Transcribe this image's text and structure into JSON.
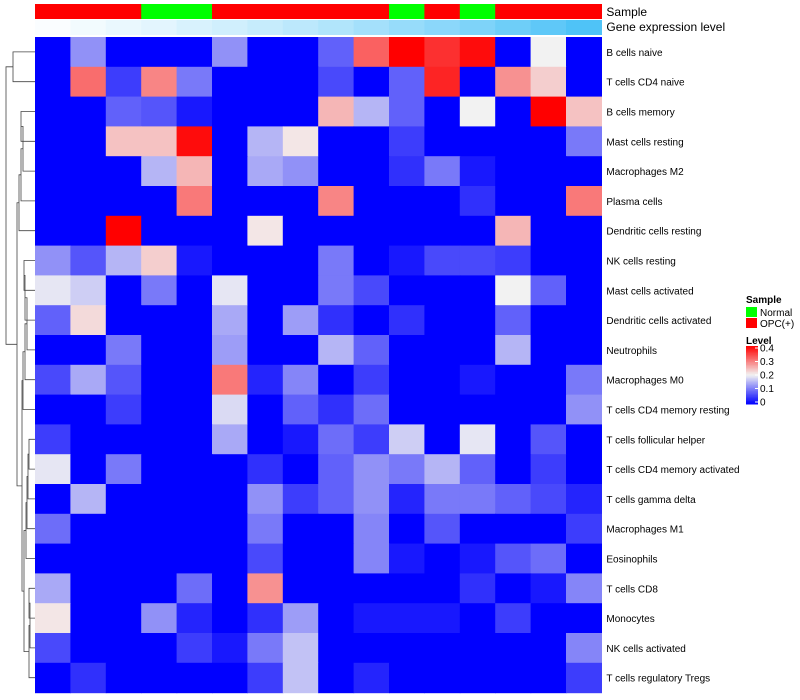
{
  "chart_data": {
    "type": "heatmap",
    "title": "",
    "annotation_labels": [
      "Sample",
      "Gene expression level"
    ],
    "sample_annotation": [
      "OPC(+)",
      "OPC(+)",
      "OPC(+)",
      "Normal",
      "Normal",
      "OPC(+)",
      "OPC(+)",
      "OPC(+)",
      "OPC(+)",
      "OPC(+)",
      "Normal",
      "OPC(+)",
      "Normal",
      "OPC(+)",
      "OPC(+)",
      "OPC(+)"
    ],
    "expression_annotation": [
      0.02,
      0.05,
      0.08,
      0.11,
      0.15,
      0.18,
      0.22,
      0.26,
      0.3,
      0.35,
      0.4,
      0.45,
      0.5,
      0.56,
      0.62,
      0.68
    ],
    "rows": [
      "B cells naive",
      "T cells CD4 naive",
      "B cells memory",
      "Mast cells resting",
      "Macrophages M2",
      "Plasma cells",
      "Dendritic cells resting",
      "NK cells resting",
      "Mast cells activated",
      "Dendritic cells activated",
      "Neutrophils",
      "Macrophages M0",
      "T cells CD4 memory resting",
      "T cells follicular helper",
      "T cells CD4 memory activated",
      "T cells gamma delta",
      "Macrophages M1",
      "Eosinophils",
      "T cells CD8",
      "Monocytes",
      "NK cells activated",
      "T cells regulatory  Tregs"
    ],
    "values": [
      [
        0.0,
        0.12,
        0.0,
        0.0,
        0.0,
        0.12,
        0.0,
        0.0,
        0.08,
        0.32,
        0.4,
        0.36,
        0.39,
        0.0,
        0.2,
        0.0
      ],
      [
        0.0,
        0.31,
        0.05,
        0.29,
        0.1,
        0.0,
        0.0,
        0.0,
        0.06,
        0.0,
        0.08,
        0.37,
        0.0,
        0.28,
        0.23,
        0.0
      ],
      [
        0.0,
        0.0,
        0.08,
        0.07,
        0.02,
        0.0,
        0.0,
        0.0,
        0.25,
        0.15,
        0.08,
        0.0,
        0.2,
        0.0,
        0.4,
        0.24
      ],
      [
        0.0,
        0.0,
        0.24,
        0.24,
        0.39,
        0.0,
        0.15,
        0.21,
        0.0,
        0.0,
        0.05,
        0.0,
        0.0,
        0.0,
        0.0,
        0.1
      ],
      [
        0.0,
        0.0,
        0.0,
        0.15,
        0.25,
        0.0,
        0.14,
        0.12,
        0.0,
        0.0,
        0.04,
        0.1,
        0.02,
        0.0,
        0.0,
        0.0
      ],
      [
        0.0,
        0.0,
        0.0,
        0.0,
        0.3,
        0.0,
        0.0,
        0.0,
        0.29,
        0.0,
        0.0,
        0.0,
        0.04,
        0.0,
        0.0,
        0.3
      ],
      [
        0.0,
        0.0,
        0.4,
        0.0,
        0.0,
        0.0,
        0.21,
        0.0,
        0.0,
        0.0,
        0.0,
        0.0,
        0.0,
        0.25,
        0.0,
        0.0
      ],
      [
        0.12,
        0.07,
        0.15,
        0.23,
        0.02,
        0.0,
        0.0,
        0.0,
        0.1,
        0.0,
        0.02,
        0.06,
        0.06,
        0.05,
        0.0,
        0.0
      ],
      [
        0.19,
        0.17,
        0.0,
        0.1,
        0.0,
        0.19,
        0.0,
        0.0,
        0.1,
        0.06,
        0.0,
        0.0,
        0.0,
        0.2,
        0.08,
        0.0
      ],
      [
        0.08,
        0.22,
        0.0,
        0.0,
        0.0,
        0.14,
        0.0,
        0.13,
        0.04,
        0.0,
        0.04,
        0.0,
        0.0,
        0.08,
        0.0,
        0.0
      ],
      [
        0.0,
        0.0,
        0.1,
        0.0,
        0.0,
        0.13,
        0.0,
        0.0,
        0.15,
        0.08,
        0.0,
        0.0,
        0.0,
        0.15,
        0.0,
        0.0
      ],
      [
        0.06,
        0.14,
        0.07,
        0.0,
        0.0,
        0.3,
        0.03,
        0.11,
        0.0,
        0.05,
        0.0,
        0.0,
        0.02,
        0.0,
        0.0,
        0.1
      ],
      [
        0.0,
        0.0,
        0.05,
        0.0,
        0.0,
        0.18,
        0.0,
        0.08,
        0.04,
        0.09,
        0.0,
        0.0,
        0.0,
        0.0,
        0.0,
        0.12
      ],
      [
        0.05,
        0.0,
        0.0,
        0.0,
        0.0,
        0.14,
        0.0,
        0.02,
        0.09,
        0.05,
        0.17,
        0.0,
        0.19,
        0.0,
        0.07,
        0.0
      ],
      [
        0.19,
        0.0,
        0.1,
        0.0,
        0.0,
        0.0,
        0.04,
        0.0,
        0.08,
        0.12,
        0.1,
        0.15,
        0.08,
        0.0,
        0.05,
        0.0
      ],
      [
        0.0,
        0.15,
        0.0,
        0.0,
        0.0,
        0.0,
        0.12,
        0.05,
        0.08,
        0.12,
        0.03,
        0.1,
        0.1,
        0.08,
        0.06,
        0.03
      ],
      [
        0.09,
        0.0,
        0.0,
        0.0,
        0.0,
        0.0,
        0.1,
        0.0,
        0.0,
        0.11,
        0.0,
        0.07,
        0.0,
        0.0,
        0.0,
        0.05
      ],
      [
        0.0,
        0.0,
        0.0,
        0.0,
        0.0,
        0.0,
        0.06,
        0.0,
        0.0,
        0.11,
        0.02,
        0.0,
        0.02,
        0.07,
        0.09,
        0.0
      ],
      [
        0.14,
        0.0,
        0.0,
        0.0,
        0.09,
        0.0,
        0.28,
        0.0,
        0.0,
        0.0,
        0.0,
        0.0,
        0.04,
        0.0,
        0.02,
        0.11
      ],
      [
        0.21,
        0.0,
        0.0,
        0.12,
        0.03,
        0.0,
        0.04,
        0.13,
        0.0,
        0.02,
        0.02,
        0.02,
        0.0,
        0.05,
        0.0,
        0.0
      ],
      [
        0.06,
        0.0,
        0.0,
        0.0,
        0.05,
        0.02,
        0.1,
        0.16,
        0.0,
        0.0,
        0.0,
        0.0,
        0.0,
        0.0,
        0.0,
        0.11
      ],
      [
        0.0,
        0.04,
        0.0,
        0.0,
        0.0,
        0.0,
        0.05,
        0.16,
        0.0,
        0.03,
        0.0,
        0.0,
        0.0,
        0.0,
        0.0,
        0.05
      ]
    ],
    "color_scale": {
      "min": 0,
      "mid": 0.2,
      "max": 0.4,
      "low_color": "#0000ff",
      "mid_color": "#f2f2f2",
      "high_color": "#ff0000"
    },
    "legend": {
      "sample_title": "Sample",
      "sample_entries": [
        {
          "label": "Normal",
          "color": "#00ff00"
        },
        {
          "label": "OPC(+)",
          "color": "#ff0000"
        }
      ],
      "level_title": "Level",
      "level_ticks": [
        "0.4",
        "0.3",
        "0.2",
        "0.1",
        "0"
      ],
      "placement": "right"
    },
    "dendrogram": "rows"
  }
}
